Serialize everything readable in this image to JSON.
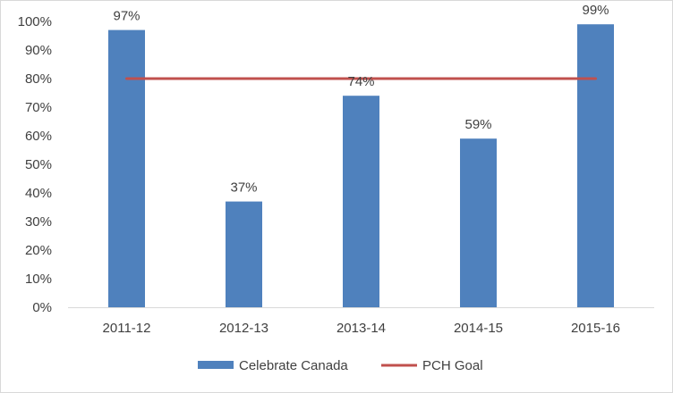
{
  "chart_data": {
    "type": "bar",
    "categories": [
      "2011-12",
      "2012-13",
      "2013-14",
      "2014-15",
      "2015-16"
    ],
    "series": [
      {
        "name": "Celebrate Canada",
        "type": "bar",
        "values": [
          97,
          37,
          74,
          59,
          99
        ],
        "data_labels": [
          "97%",
          "37%",
          "74%",
          "59%",
          "99%"
        ],
        "color": "#4f81bd"
      },
      {
        "name": "PCH Goal",
        "type": "line",
        "values": [
          80,
          80,
          80,
          80,
          80
        ],
        "color": "#c0504d"
      }
    ],
    "ylim": [
      0,
      100
    ],
    "yticks": [
      0,
      10,
      20,
      30,
      40,
      50,
      60,
      70,
      80,
      90,
      100
    ],
    "ytick_labels": [
      "0%",
      "10%",
      "20%",
      "30%",
      "40%",
      "50%",
      "60%",
      "70%",
      "80%",
      "90%",
      "100%"
    ],
    "grid": false,
    "legend_position": "bottom",
    "title": "",
    "xlabel": "",
    "ylabel": ""
  }
}
